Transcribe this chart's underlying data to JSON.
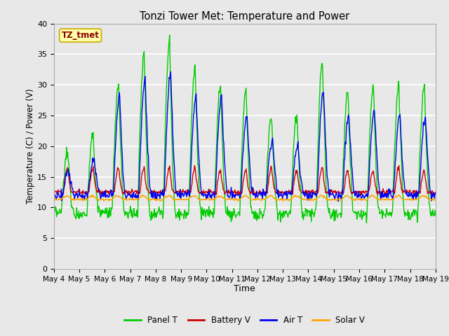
{
  "title": "Tonzi Tower Met: Temperature and Power",
  "xlabel": "Time",
  "ylabel": "Temperature (C) / Power (V)",
  "ylim": [
    0,
    40
  ],
  "colors": {
    "Panel T": "#00CC00",
    "Battery V": "#CC0000",
    "Air T": "#0000EE",
    "Solar V": "#FFA500"
  },
  "x_tick_labels": [
    "May 4",
    "May 5",
    "May 6",
    "May 7",
    "May 8",
    "May 9",
    "May 10",
    "May 11",
    "May 12",
    "May 13",
    "May 14",
    "May 15",
    "May 16",
    "May 17",
    "May 18",
    "May 19"
  ],
  "annotation_text": "TZ_tmet",
  "annotation_color": "#8B0000",
  "annotation_bg": "#FFFFAA",
  "annotation_border": "#CCAA00",
  "bg_color": "#E8E8E8",
  "grid_color": "#FFFFFF"
}
